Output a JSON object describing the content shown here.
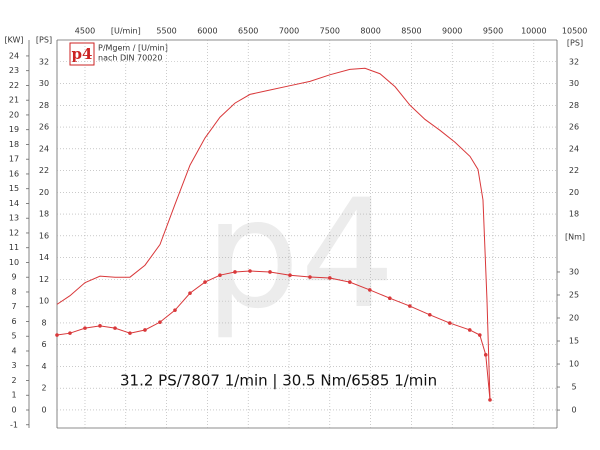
{
  "chart_data": {
    "type": "line",
    "watermark": "p4",
    "legend_logo": "p4",
    "legend_lines": [
      "P/Mgem / [U/min]",
      "nach DIN 70020"
    ],
    "annotation": "31.2 PS/7807 1/min | 30.5 Nm/6585 1/min",
    "kw_label": "[KW]",
    "y_label": "[PS]",
    "y2_label": "[Nm]",
    "grid": true,
    "xlim": [
      4157,
      10284
    ],
    "xticks": [
      4500,
      {
        "value": 5000,
        "label": "[U/min]"
      },
      5500,
      6000,
      6500,
      7000,
      7500,
      8000,
      8500,
      9000,
      9500,
      10000,
      10500
    ],
    "ylim": [
      -1.66,
      34
    ],
    "yticks": [
      0,
      2,
      4,
      6,
      8,
      10,
      12,
      14,
      16,
      18,
      20,
      22,
      24,
      26,
      28,
      30,
      32
    ],
    "kwlim": [
      -1.22,
      25.08
    ],
    "kwticks": [
      -1,
      0,
      1,
      2,
      3,
      4,
      5,
      6,
      7,
      8,
      9,
      10,
      11,
      12,
      13,
      14,
      15,
      16,
      17,
      18,
      19,
      20,
      21,
      22,
      23,
      24
    ],
    "y2lim": [
      -3.9,
      80.4
    ],
    "y2ticks": [
      0,
      5,
      10,
      15,
      20,
      25,
      30
    ],
    "series": [
      {
        "name": "P",
        "color": "#d9383a",
        "markers": false,
        "x": [
          4157,
          4316,
          4500,
          4684,
          4868,
          5051,
          5235,
          5419,
          5603,
          5787,
          5971,
          6154,
          6338,
          6522,
          6767,
          7012,
          7257,
          7500,
          7745,
          7931,
          8115,
          8300,
          8483,
          8667,
          8850,
          9034,
          9218,
          9316,
          9377,
          9426,
          9463
        ],
        "values": [
          9.7,
          10.5,
          11.7,
          12.3,
          12.2,
          12.2,
          13.3,
          15.2,
          18.9,
          22.5,
          25.0,
          26.9,
          28.2,
          29.0,
          29.4,
          29.8,
          30.2,
          30.8,
          31.3,
          31.4,
          30.9,
          29.7,
          28.0,
          26.7,
          25.7,
          24.6,
          23.3,
          22.1,
          19.3,
          10.1,
          0.9
        ]
      },
      {
        "name": "M",
        "color": "#d9383a",
        "markers": true,
        "axis": "y2",
        "x": [
          4157,
          4316,
          4500,
          4684,
          4868,
          5051,
          5235,
          5419,
          5603,
          5787,
          5971,
          6154,
          6338,
          6522,
          6767,
          7012,
          7257,
          7500,
          7745,
          7990,
          8235,
          8480,
          8725,
          8970,
          9215,
          9338,
          9411,
          9463
        ],
        "values": [
          16.3,
          16.7,
          17.8,
          18.3,
          17.8,
          16.7,
          17.4,
          19.1,
          21.7,
          25.4,
          27.8,
          29.3,
          30.0,
          30.2,
          30.0,
          29.3,
          28.9,
          28.7,
          27.8,
          26.1,
          24.3,
          22.6,
          20.7,
          18.9,
          17.4,
          16.3,
          12.0,
          2.2
        ]
      }
    ]
  }
}
